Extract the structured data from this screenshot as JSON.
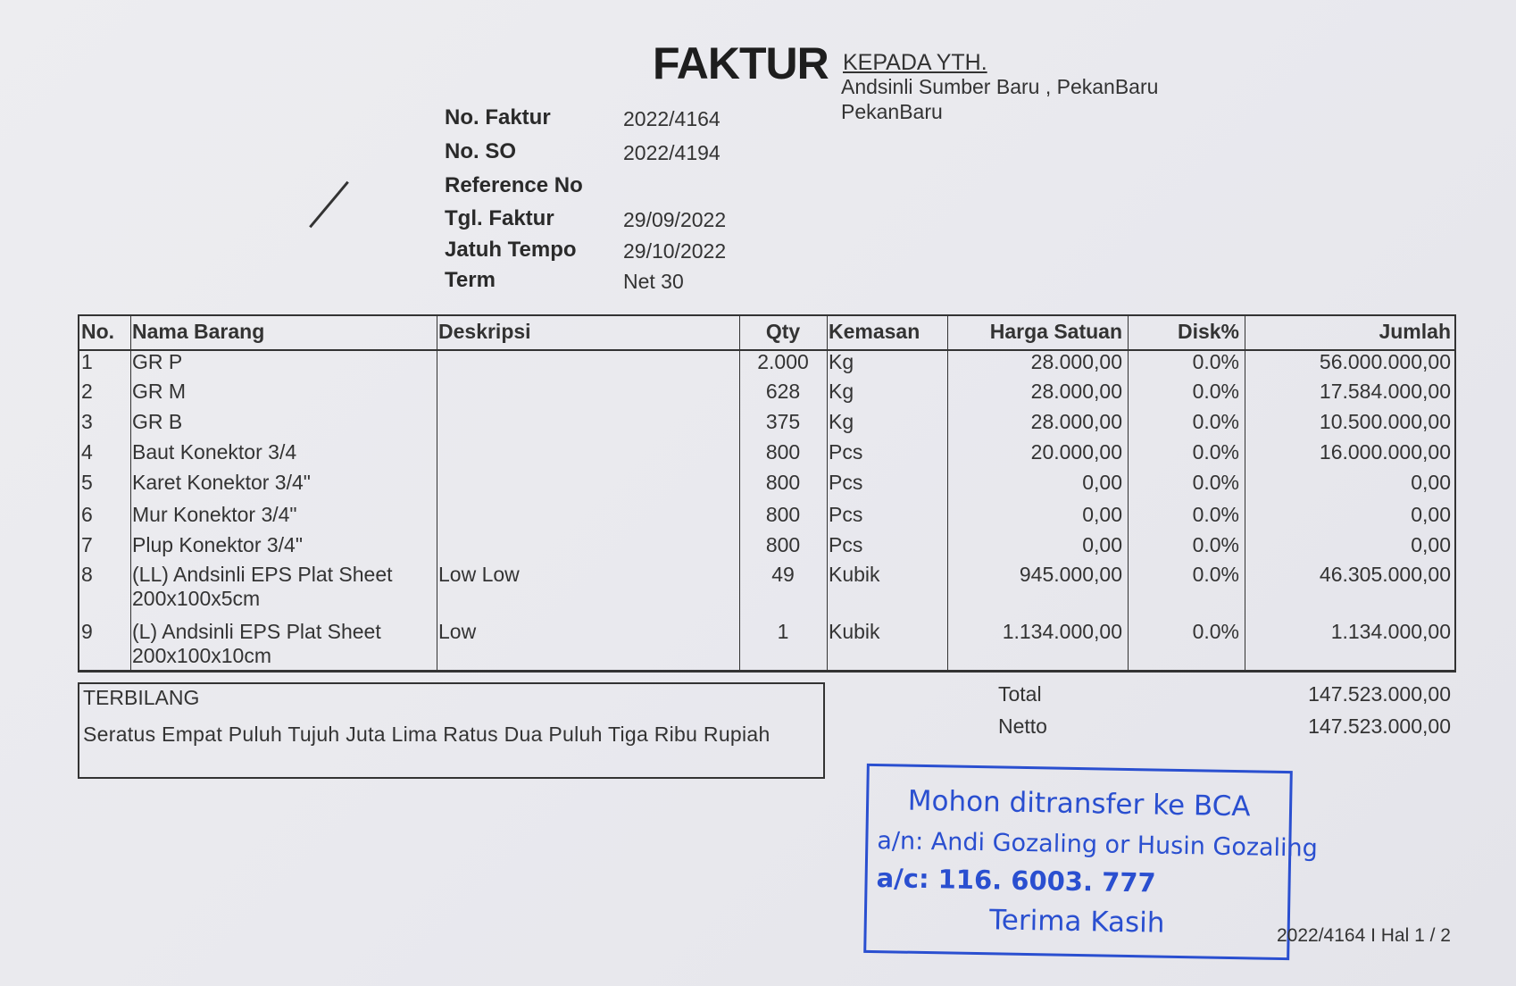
{
  "title": "FAKTUR",
  "recipient": {
    "heading": "KEPADA YTH.",
    "line1": "Andsinli Sumber Baru , PekanBaru",
    "line2": "PekanBaru"
  },
  "info": [
    {
      "label": "No. Faktur",
      "value": "2022/4164"
    },
    {
      "label": "No. SO",
      "value": "2022/4194"
    },
    {
      "label": "Reference No",
      "value": ""
    },
    {
      "label": "Tgl. Faktur",
      "value": "29/09/2022"
    },
    {
      "label": "Jatuh Tempo",
      "value": "29/10/2022"
    },
    {
      "label": "Term",
      "value": "Net 30"
    }
  ],
  "table": {
    "headers": [
      "No.",
      "Nama Barang",
      "Deskripsi",
      "Qty",
      "Kemasan",
      "Harga Satuan",
      "Disk%",
      "Jumlah"
    ],
    "rows": [
      [
        "1",
        "GR P",
        "",
        "2.000",
        "Kg",
        "28.000,00",
        "0.0%",
        "56.000.000,00"
      ],
      [
        "2",
        "GR M",
        "",
        "628",
        "Kg",
        "28.000,00",
        "0.0%",
        "17.584.000,00"
      ],
      [
        "3",
        "GR B",
        "",
        "375",
        "Kg",
        "28.000,00",
        "0.0%",
        "10.500.000,00"
      ],
      [
        "4",
        "Baut Konektor 3/4",
        "",
        "800",
        "Pcs",
        "20.000,00",
        "0.0%",
        "16.000.000,00"
      ],
      [
        "5",
        "Karet Konektor 3/4\"",
        "",
        "800",
        "Pcs",
        "0,00",
        "0.0%",
        "0,00"
      ],
      [
        "6",
        "Mur Konektor 3/4\"",
        "",
        "800",
        "Pcs",
        "0,00",
        "0.0%",
        "0,00"
      ],
      [
        "7",
        "Plup Konektor 3/4\"",
        "",
        "800",
        "Pcs",
        "0,00",
        "0.0%",
        "0,00"
      ],
      [
        "8",
        "(LL) Andsinli EPS Plat Sheet\n200x100x5cm",
        "Low Low",
        "49",
        "Kubik",
        "945.000,00",
        "0.0%",
        "46.305.000,00"
      ],
      [
        "9",
        "(L) Andsinli EPS Plat Sheet\n200x100x10cm",
        "Low",
        "1",
        "Kubik",
        "1.134.000,00",
        "0.0%",
        "1.134.000,00"
      ]
    ]
  },
  "terbilang": {
    "label": "TERBILANG",
    "text": "Seratus Empat Puluh Tujuh Juta Lima Ratus Dua Puluh Tiga Ribu Rupiah"
  },
  "totals": {
    "total_label": "Total",
    "total_value": "147.523.000,00",
    "netto_label": "Netto",
    "netto_value": "147.523.000,00"
  },
  "stamp": {
    "line1": "Mohon ditransfer ke BCA",
    "line2": "a/n: Andi Gozaling or Husin Gozaling",
    "line3": "a/c: 116. 6003. 777",
    "line4": "Terima Kasih",
    "color": "#2a4fd0"
  },
  "footer": "2022/4164 I Hal 1 / 2"
}
